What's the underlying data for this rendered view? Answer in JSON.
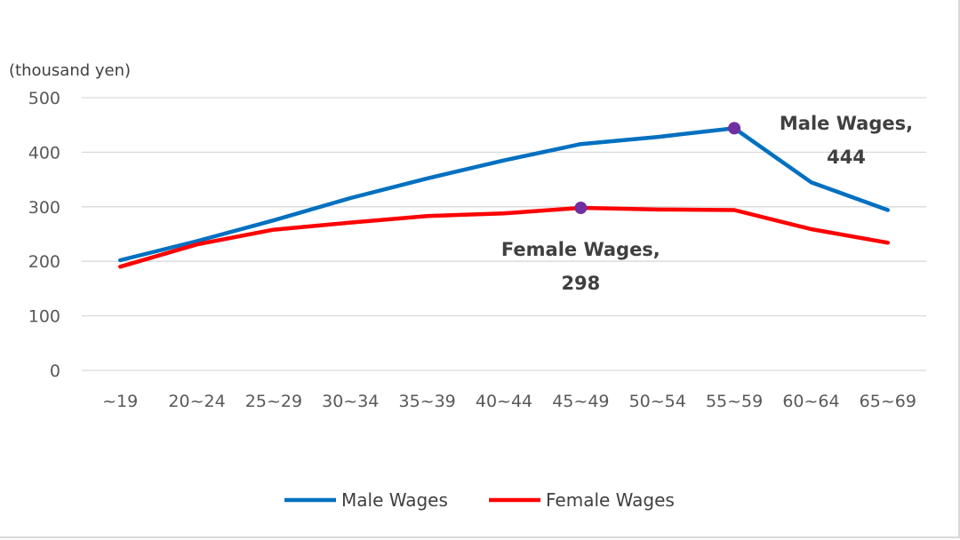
{
  "chart_data": {
    "type": "line",
    "ylabel": "(thousand yen)",
    "ylim": [
      0,
      500
    ],
    "yticks": [
      "0",
      "100",
      "200",
      "300",
      "400",
      "500"
    ],
    "categories": [
      "~19",
      "20~24",
      "25~29",
      "30~34",
      "35~39",
      "40~44",
      "45~49",
      "50~54",
      "55~59",
      "60~64",
      "65~69"
    ],
    "grid": true,
    "legend_position": "bottom",
    "series": [
      {
        "name": "Male Wages",
        "color": "#0070C0",
        "values": [
          202,
          237,
          275,
          316,
          352,
          385,
          415,
          428,
          444,
          345,
          294
        ]
      },
      {
        "name": "Female Wages",
        "color": "#FF0000",
        "values": [
          190,
          231,
          258,
          271,
          283,
          288,
          298,
          295,
          294,
          259,
          234
        ]
      }
    ],
    "annotations": [
      {
        "series": 0,
        "category": "55~59",
        "line1": "Male Wages,",
        "line2": "444",
        "marker_color": "#7030A0"
      },
      {
        "series": 1,
        "category": "45~49",
        "line1": "Female Wages,",
        "line2": "298",
        "marker_color": "#7030A0"
      }
    ]
  }
}
